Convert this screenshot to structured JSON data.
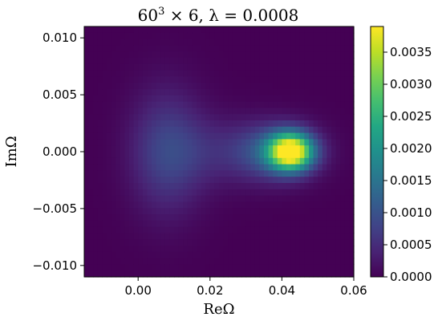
{
  "chart_data": {
    "type": "heatmap",
    "title": "60³ × 6, λ = 0.0008",
    "title_parts": {
      "base": "60",
      "exp": "3",
      "rest": " × 6, λ = 0.0008"
    },
    "xlabel": "ReΩ",
    "ylabel": "ImΩ",
    "xlim": [
      -0.015,
      0.06
    ],
    "ylim": [
      -0.011,
      0.011
    ],
    "xticks": [
      {
        "value": 0.0,
        "label": "0.00"
      },
      {
        "value": 0.02,
        "label": "0.02"
      },
      {
        "value": 0.04,
        "label": "0.04"
      },
      {
        "value": 0.06,
        "label": "0.06"
      }
    ],
    "yticks": [
      {
        "value": 0.01,
        "label": "0.010"
      },
      {
        "value": 0.005,
        "label": "0.005"
      },
      {
        "value": 0.0,
        "label": "0.000"
      },
      {
        "value": -0.005,
        "label": "−0.005"
      },
      {
        "value": -0.01,
        "label": "−0.010"
      }
    ],
    "colorbar": {
      "colormap": "viridis",
      "range": [
        0.0,
        0.0039
      ],
      "ticks": [
        {
          "value": 0.0,
          "label": "0.0000"
        },
        {
          "value": 0.0005,
          "label": "0.0005"
        },
        {
          "value": 0.001,
          "label": "0.0010"
        },
        {
          "value": 0.0015,
          "label": "0.0015"
        },
        {
          "value": 0.002,
          "label": "0.0020"
        },
        {
          "value": 0.0025,
          "label": "0.0025"
        },
        {
          "value": 0.003,
          "label": "0.0030"
        },
        {
          "value": 0.0035,
          "label": "0.0035"
        }
      ]
    },
    "grid": {
      "nx": 60,
      "ny": 40
    },
    "density_components": [
      {
        "center_re": 0.0425,
        "center_im": 0.0,
        "sigma_re": 0.0042,
        "sigma_im": 0.0011,
        "peak": 0.0039
      },
      {
        "center_re": 0.038,
        "center_im": 0.0,
        "sigma_re": 0.008,
        "sigma_im": 0.0017,
        "peak": 0.0011
      },
      {
        "center_re": 0.008,
        "center_im": 0.0,
        "sigma_re": 0.007,
        "sigma_im": 0.0038,
        "peak": 0.00075
      },
      {
        "center_re": 0.02,
        "center_im": 0.0,
        "sigma_re": 0.01,
        "sigma_im": 0.0022,
        "peak": 0.00035
      }
    ],
    "grid_lines": false
  }
}
